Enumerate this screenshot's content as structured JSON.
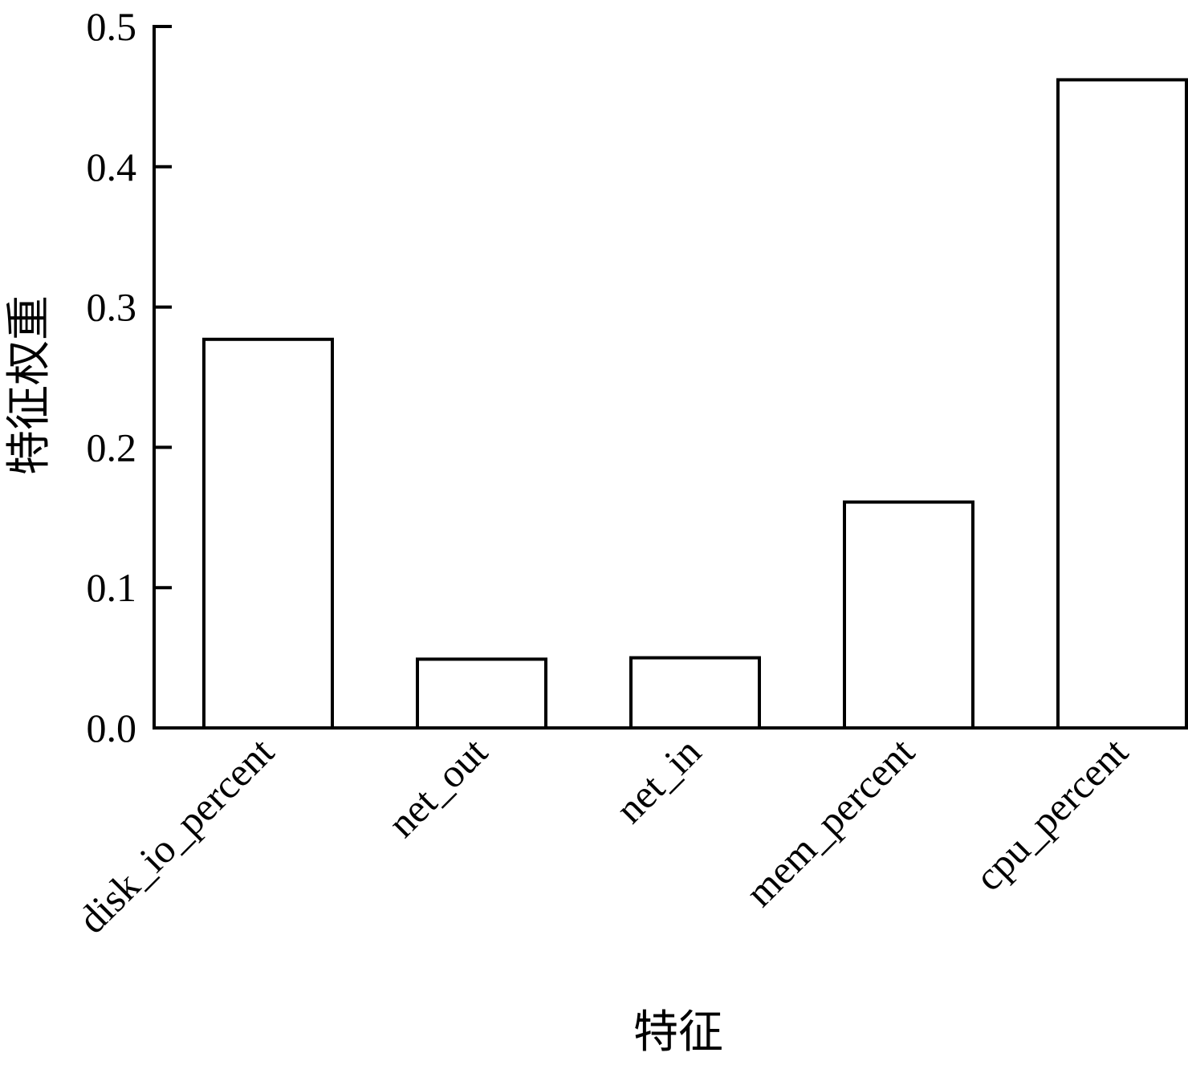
{
  "chart_data": {
    "type": "bar",
    "categories": [
      "disk_io_percent",
      "net_out",
      "net_in",
      "mem_percent",
      "cpu_percent"
    ],
    "values": [
      0.277,
      0.049,
      0.05,
      0.161,
      0.462
    ],
    "xlabel": "特征",
    "ylabel": "特征权重",
    "ylim": [
      0.0,
      0.5
    ],
    "yticks": [
      "0.0",
      "0.1",
      "0.2",
      "0.3",
      "0.4",
      "0.5"
    ],
    "grid": false,
    "legend": "none",
    "colors": {
      "bar_fill": "#ffffff",
      "bar_stroke": "#000000",
      "axis": "#000000"
    }
  }
}
